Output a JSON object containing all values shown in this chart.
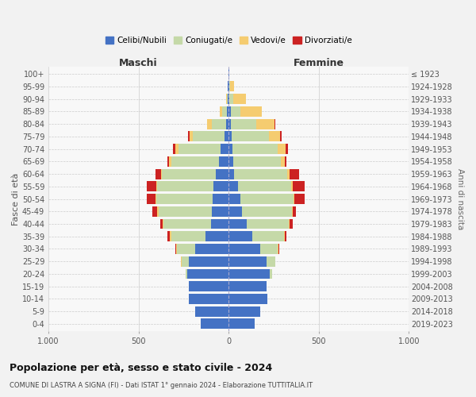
{
  "age_groups": [
    "0-4",
    "5-9",
    "10-14",
    "15-19",
    "20-24",
    "25-29",
    "30-34",
    "35-39",
    "40-44",
    "45-49",
    "50-54",
    "55-59",
    "60-64",
    "65-69",
    "70-74",
    "75-79",
    "80-84",
    "85-89",
    "90-94",
    "95-99",
    "100+"
  ],
  "birth_years": [
    "2019-2023",
    "2014-2018",
    "2009-2013",
    "2004-2008",
    "1999-2003",
    "1994-1998",
    "1989-1993",
    "1984-1988",
    "1979-1983",
    "1974-1978",
    "1969-1973",
    "1964-1968",
    "1959-1963",
    "1954-1958",
    "1949-1953",
    "1944-1948",
    "1939-1943",
    "1934-1938",
    "1929-1933",
    "1924-1928",
    "≤ 1923"
  ],
  "colors": {
    "celibi": "#4472c4",
    "coniugati": "#c5d9a8",
    "vedovi": "#f5cc70",
    "divorziati": "#cc2222"
  },
  "maschi": {
    "celibi": [
      155,
      185,
      220,
      220,
      230,
      220,
      185,
      130,
      100,
      95,
      90,
      85,
      70,
      55,
      45,
      25,
      15,
      10,
      5,
      5,
      2
    ],
    "coniugati": [
      0,
      0,
      0,
      2,
      10,
      40,
      100,
      190,
      260,
      295,
      310,
      310,
      300,
      265,
      235,
      175,
      80,
      25,
      5,
      0,
      0
    ],
    "vedovi": [
      0,
      0,
      0,
      0,
      0,
      5,
      5,
      5,
      5,
      5,
      5,
      5,
      5,
      10,
      15,
      15,
      25,
      15,
      5,
      0,
      0
    ],
    "divorziati": [
      0,
      0,
      0,
      0,
      0,
      0,
      5,
      15,
      15,
      30,
      50,
      55,
      30,
      10,
      15,
      10,
      0,
      0,
      0,
      0,
      0
    ]
  },
  "femmine": {
    "celibi": [
      145,
      175,
      215,
      210,
      230,
      210,
      175,
      130,
      100,
      75,
      65,
      50,
      30,
      25,
      20,
      15,
      10,
      10,
      5,
      3,
      2
    ],
    "coniugati": [
      0,
      0,
      0,
      2,
      10,
      50,
      95,
      175,
      235,
      275,
      295,
      295,
      295,
      265,
      250,
      210,
      145,
      55,
      20,
      5,
      0
    ],
    "vedovi": [
      0,
      0,
      0,
      0,
      0,
      0,
      5,
      5,
      5,
      5,
      5,
      10,
      15,
      20,
      45,
      60,
      100,
      120,
      70,
      20,
      2
    ],
    "divorziati": [
      0,
      0,
      0,
      0,
      0,
      0,
      5,
      10,
      15,
      20,
      55,
      65,
      50,
      10,
      15,
      10,
      5,
      0,
      0,
      0,
      0
    ]
  },
  "title": "Popolazione per età, sesso e stato civile - 2024",
  "subtitle": "COMUNE DI LASTRA A SIGNA (FI) - Dati ISTAT 1° gennaio 2024 - Elaborazione TUTTITALIA.IT",
  "ylabel": "Fasce di età",
  "ylabel_right": "Anni di nascita",
  "xlabel_left": "Maschi",
  "xlabel_right": "Femmine",
  "xlim": 1000,
  "bg_color": "#f2f2f2",
  "plot_bg": "#f8f8f8",
  "legend_labels": [
    "Celibi/Nubili",
    "Coniugati/e",
    "Vedovi/e",
    "Divorziati/e"
  ]
}
